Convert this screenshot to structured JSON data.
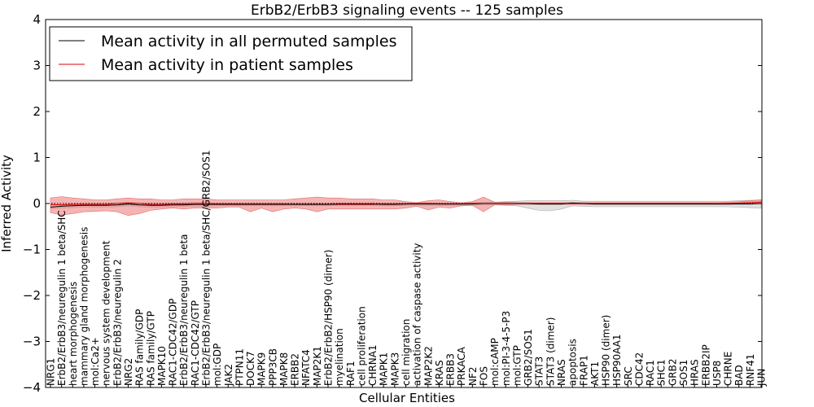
{
  "chart_data": {
    "type": "line",
    "title": "ErbB2/ErbB3 signaling events -- 125 samples",
    "xlabel": "Cellular Entities",
    "ylabel": "Inferred Activity",
    "ylim": [
      -4,
      4
    ],
    "yticks": [
      -4,
      -3,
      -2,
      -1,
      0,
      1,
      2,
      3,
      4
    ],
    "ytick_labels": [
      "−4",
      "−3",
      "−2",
      "−1",
      "0",
      "1",
      "2",
      "3",
      "4"
    ],
    "legend_position": "top-left",
    "colors": {
      "permuted": "#000000",
      "patient": "#e00000",
      "patient_band": "#f08080",
      "permuted_band": "#c8c8c8"
    },
    "categories": [
      "NRG1",
      "ErbB2/ErbB3/neuregulin 1 beta/SHC",
      "heart morphogenesis",
      "mammary gland morphogenesis",
      "mol:Ca2+",
      "nervous system development",
      "ErbB2/ErbB3/neuregulin 2",
      "NRG2",
      "RAS family/GDP",
      "RAS family/GTP",
      "MAPK10",
      "RAC1-CDC42/GDP",
      "ErbB2/ErbB3/neuregulin 1 beta",
      "RAC1-CDC42/GTP",
      "ErbB2/ErbB3/neuregulin 1 beta/SHC/GRB2/SOS1",
      "mol:GDP",
      "JAK2",
      "PTPN11",
      "DOCK7",
      "MAPK9",
      "PPP3CB",
      "MAPK8",
      "ERBB2",
      "NFATC4",
      "MAP2K1",
      "ErbB2/ErbB2/HSP90 (dimer)",
      "myelination",
      "RAF1",
      "cell proliferation",
      "CHRNA1",
      "MAPK1",
      "MAPK3",
      "cell migration",
      "activation of caspase activity",
      "MAP2K2",
      "KRAS",
      "ERBB3",
      "PRKACA",
      "NF2",
      "FOS",
      "mol:cAMP",
      "mol:PI-3-4-5-P3",
      "mol:GTP",
      "GRB2/SOS1",
      "STAT3",
      "STAT3 (dimer)",
      "NRAS",
      "apoptosis",
      "FRAP1",
      "AKT1",
      "HSP90 (dimer)",
      "HSP90AA1",
      "SRC",
      "CDC42",
      "RAC1",
      "SHC1",
      "GRB2",
      "SOS1",
      "HRAS",
      "ERBB2IP",
      "USP8",
      "CHRNE",
      "BAD",
      "RNF41",
      "JUN"
    ],
    "series": [
      {
        "name": "Mean activity in all permuted samples",
        "values": [
          -0.08,
          -0.06,
          -0.05,
          -0.04,
          -0.04,
          -0.04,
          -0.03,
          -0.01,
          -0.03,
          -0.04,
          -0.04,
          -0.03,
          -0.03,
          -0.02,
          -0.02,
          -0.02,
          -0.02,
          -0.02,
          -0.02,
          -0.02,
          -0.02,
          -0.02,
          -0.02,
          -0.02,
          -0.02,
          -0.02,
          -0.01,
          -0.01,
          -0.01,
          -0.01,
          -0.02,
          -0.02,
          -0.01,
          -0.01,
          -0.01,
          -0.01,
          -0.01,
          -0.01,
          -0.01,
          0.0,
          0.0,
          0.0,
          0.0,
          0.0,
          -0.01,
          -0.01,
          -0.01,
          0.01,
          0.0,
          -0.01,
          -0.01,
          -0.01,
          -0.01,
          -0.01,
          -0.01,
          -0.01,
          -0.01,
          -0.01,
          -0.01,
          -0.01,
          -0.01,
          -0.01,
          -0.01,
          -0.01,
          0.0
        ],
        "lower": [
          -0.12,
          -0.1,
          -0.09,
          -0.08,
          -0.08,
          -0.08,
          -0.07,
          -0.05,
          -0.07,
          -0.08,
          -0.08,
          -0.07,
          -0.07,
          -0.06,
          -0.06,
          -0.05,
          -0.05,
          -0.05,
          -0.05,
          -0.05,
          -0.05,
          -0.05,
          -0.05,
          -0.05,
          -0.05,
          -0.05,
          -0.04,
          -0.04,
          -0.04,
          -0.04,
          -0.05,
          -0.05,
          -0.04,
          -0.04,
          -0.04,
          -0.04,
          -0.04,
          -0.04,
          -0.04,
          -0.03,
          -0.03,
          -0.04,
          -0.05,
          -0.1,
          -0.15,
          -0.16,
          -0.12,
          -0.05,
          -0.06,
          -0.07,
          -0.07,
          -0.07,
          -0.07,
          -0.07,
          -0.07,
          -0.07,
          -0.07,
          -0.07,
          -0.07,
          -0.07,
          -0.07,
          -0.07,
          -0.08,
          -0.09,
          -0.1
        ],
        "upper": [
          -0.04,
          -0.02,
          -0.01,
          0.0,
          0.0,
          0.0,
          0.01,
          0.03,
          0.01,
          0.0,
          0.0,
          0.01,
          0.01,
          0.02,
          0.02,
          0.01,
          0.01,
          0.01,
          0.01,
          0.01,
          0.01,
          0.01,
          0.01,
          0.01,
          0.01,
          0.01,
          0.02,
          0.02,
          0.02,
          0.02,
          0.01,
          0.01,
          0.02,
          0.02,
          0.02,
          0.02,
          0.02,
          0.02,
          0.02,
          0.03,
          0.03,
          0.04,
          0.05,
          0.06,
          0.06,
          0.06,
          0.06,
          0.07,
          0.05,
          0.05,
          0.05,
          0.05,
          0.05,
          0.05,
          0.05,
          0.05,
          0.05,
          0.05,
          0.05,
          0.05,
          0.05,
          0.05,
          0.06,
          0.07,
          0.08
        ]
      },
      {
        "name": "Mean activity in patient samples",
        "values": [
          -0.02,
          -0.03,
          -0.02,
          -0.02,
          -0.02,
          -0.02,
          0.0,
          0.01,
          0.0,
          -0.02,
          -0.02,
          -0.01,
          -0.01,
          0.0,
          0.0,
          -0.01,
          -0.01,
          -0.01,
          -0.01,
          -0.01,
          -0.01,
          -0.01,
          -0.02,
          -0.02,
          -0.02,
          -0.02,
          -0.02,
          -0.02,
          -0.02,
          -0.02,
          -0.01,
          -0.01,
          -0.01,
          0.0,
          0.0,
          -0.01,
          -0.01,
          -0.01,
          0.0,
          0.0,
          0.0,
          0.0,
          0.0,
          0.0,
          0.0,
          0.0,
          0.0,
          0.0,
          0.0,
          0.0,
          0.0,
          0.0,
          0.0,
          0.0,
          0.0,
          0.0,
          0.0,
          0.0,
          0.0,
          0.0,
          0.0,
          0.0,
          0.01,
          0.02,
          0.03
        ],
        "lower": [
          -0.2,
          -0.25,
          -0.22,
          -0.18,
          -0.17,
          -0.16,
          -0.18,
          -0.26,
          -0.22,
          -0.15,
          -0.12,
          -0.1,
          -0.12,
          -0.1,
          -0.1,
          -0.1,
          -0.08,
          -0.08,
          -0.18,
          -0.1,
          -0.18,
          -0.12,
          -0.1,
          -0.12,
          -0.18,
          -0.12,
          -0.12,
          -0.12,
          -0.12,
          -0.12,
          -0.12,
          -0.12,
          -0.1,
          -0.06,
          -0.14,
          -0.08,
          -0.1,
          -0.05,
          -0.04,
          -0.18,
          -0.03,
          -0.03,
          -0.02,
          -0.02,
          -0.02,
          -0.02,
          -0.02,
          -0.02,
          -0.02,
          -0.02,
          -0.02,
          -0.02,
          -0.02,
          -0.02,
          -0.02,
          -0.02,
          -0.02,
          -0.02,
          -0.02,
          -0.02,
          -0.02,
          -0.02,
          -0.01,
          -0.01,
          0.0
        ],
        "upper": [
          0.12,
          0.15,
          0.12,
          0.1,
          0.08,
          0.08,
          0.1,
          0.12,
          0.1,
          0.1,
          0.08,
          0.08,
          0.1,
          0.1,
          0.1,
          0.08,
          0.08,
          0.08,
          0.08,
          0.08,
          0.08,
          0.08,
          0.1,
          0.12,
          0.14,
          0.12,
          0.12,
          0.1,
          0.1,
          0.1,
          0.08,
          0.08,
          0.04,
          0.02,
          0.06,
          0.08,
          0.04,
          0.02,
          0.04,
          0.14,
          0.03,
          0.03,
          0.02,
          0.02,
          0.02,
          0.02,
          0.02,
          0.02,
          0.02,
          0.02,
          0.02,
          0.02,
          0.02,
          0.02,
          0.02,
          0.02,
          0.02,
          0.02,
          0.02,
          0.02,
          0.02,
          0.03,
          0.04,
          0.06,
          0.08
        ]
      }
    ]
  }
}
